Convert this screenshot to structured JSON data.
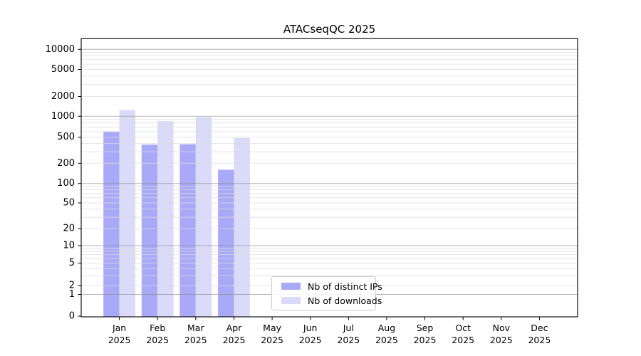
{
  "chart_data": {
    "type": "bar",
    "title": "ATACseqQC 2025",
    "categories": [
      "Jan 2025",
      "Feb 2025",
      "Mar 2025",
      "Apr 2025",
      "May 2025",
      "Jun 2025",
      "Jul 2025",
      "Aug 2025",
      "Sep 2025",
      "Oct 2025",
      "Nov 2025",
      "Dec 2025"
    ],
    "series": [
      {
        "name": "Nb of distinct IPs",
        "color": "#a9a9f8",
        "values": [
          605,
          385,
          390,
          160,
          null,
          null,
          null,
          null,
          null,
          null,
          null,
          null
        ]
      },
      {
        "name": "Nb of downloads",
        "color": "#dadafb",
        "values": [
          1250,
          850,
          975,
          485,
          null,
          null,
          null,
          null,
          null,
          null,
          null,
          null
        ]
      }
    ],
    "yscale": "symlog",
    "y_ticks": [
      0,
      1,
      2,
      5,
      10,
      20,
      50,
      100,
      200,
      500,
      1000,
      2000,
      5000,
      10000
    ],
    "ylim": [
      0,
      14000
    ],
    "xlabel": "",
    "ylabel": "",
    "grid": "horizontal major+minor",
    "legend_position": "lower center",
    "colors": {
      "major_grid": "#8f8f8f",
      "minor_grid": "#dcdcdc",
      "axis": "#000000",
      "background": "#ffffff"
    }
  }
}
